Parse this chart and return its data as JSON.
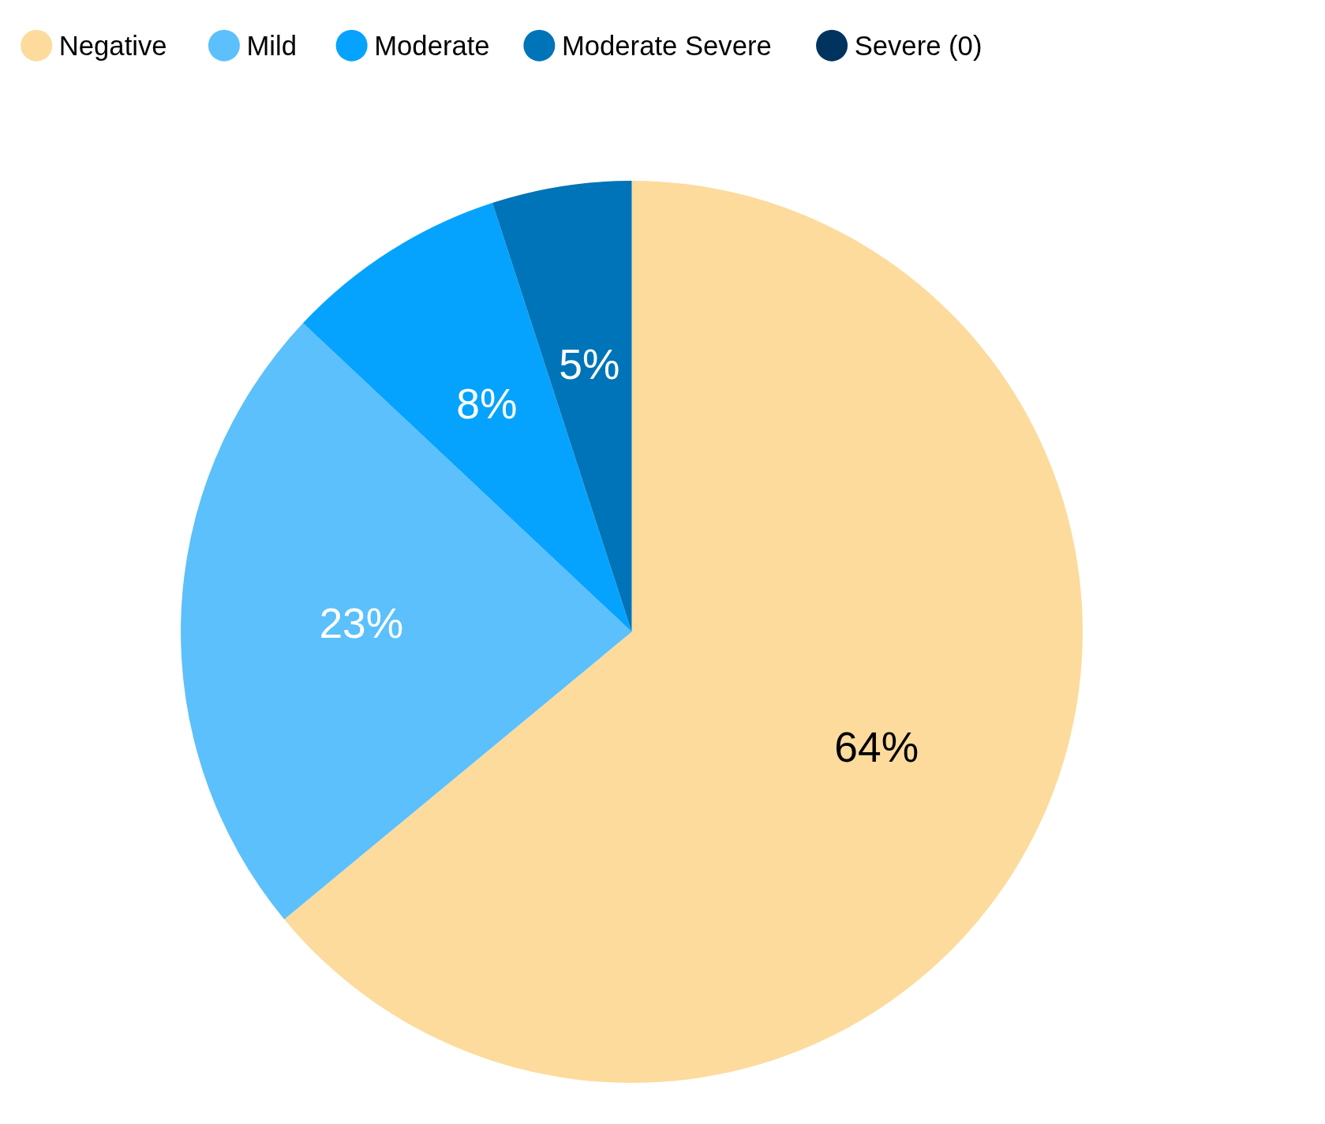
{
  "chart_data": {
    "type": "pie",
    "categories": [
      "Negative",
      "Mild",
      "Moderate",
      "Moderate Severe",
      "Severe (0)"
    ],
    "values": [
      64,
      23,
      8,
      5,
      0
    ],
    "colors": [
      "#fcdb9c",
      "#5bc0fb",
      "#05a3fd",
      "#0074b8",
      "#00335e"
    ],
    "value_labels": [
      "64%",
      "23%",
      "8%",
      "5%",
      null
    ],
    "legend": "top"
  }
}
